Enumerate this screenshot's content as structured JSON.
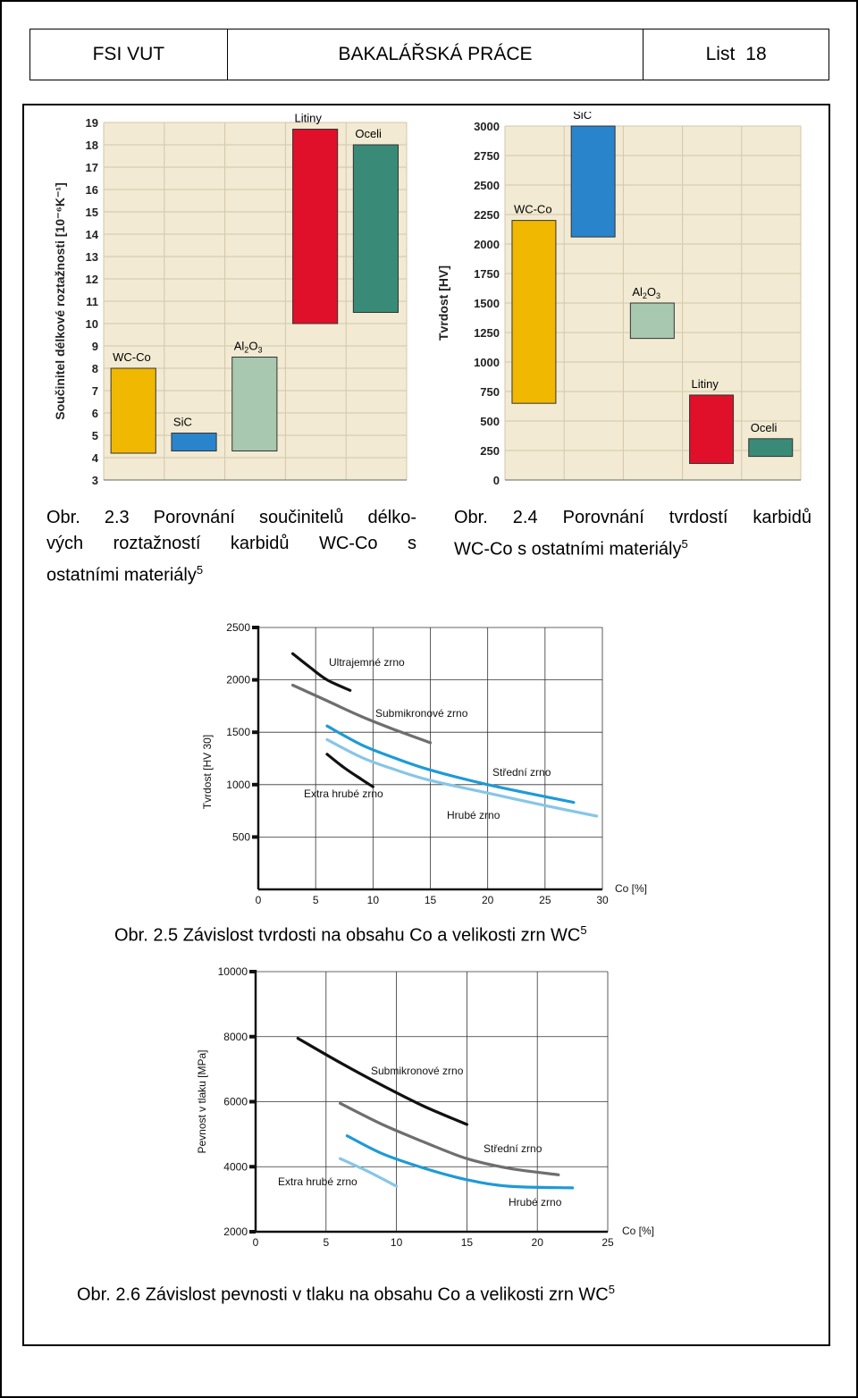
{
  "header": {
    "left": "FSI VUT",
    "center": "BAKALÁŘSKÁ PRÁCE",
    "list_label": "List",
    "list_num": "18"
  },
  "captions": {
    "fig23_line1": "Obr. 2.3 Porovnání součinitelů délko-",
    "fig23_line2": "vých roztažností karbidů WC-Co s",
    "fig23_line3": "ostatními materiály",
    "fig24_line1": "Obr. 2.4 Porovnání tvrdostí karbidů",
    "fig24_line2": "WC-Co s ostatními materiály",
    "fig25": "Obr. 2.5 Závislost tvrdosti na obsahu Co a velikosti zrn WC",
    "fig26": "Obr. 2.6 Závislost pevnosti v tlaku na obsahu Co a velikosti zrn WC",
    "ref": "5"
  },
  "chart_data": [
    {
      "type": "bar",
      "ylabel": "Součinitel délkové roztažnosti [10⁻⁶K⁻¹]",
      "ylim": [
        3,
        19
      ],
      "yticks": [
        "3",
        "4",
        "5",
        "6",
        "7",
        "8",
        "9",
        "10",
        "11",
        "12",
        "13",
        "14",
        "15",
        "16",
        "17",
        "18",
        "19"
      ],
      "categories": [
        "WC-Co",
        "SiC",
        "Al2O3",
        "Litiny",
        "Oceli"
      ],
      "ranges": [
        [
          4.2,
          8.0
        ],
        [
          4.3,
          5.1
        ],
        [
          4.3,
          8.5
        ],
        [
          10.0,
          18.7
        ],
        [
          10.5,
          18.0
        ]
      ],
      "colors": [
        "#f0b800",
        "#2a84cc",
        "#a8c8b0",
        "#e0102a",
        "#3a8a78"
      ]
    },
    {
      "type": "bar",
      "ylabel": "Tvrdost [HV]",
      "ylim": [
        0,
        3000
      ],
      "yticks": [
        "0",
        "250",
        "500",
        "750",
        "1000",
        "1250",
        "1500",
        "1750",
        "2000",
        "2250",
        "2500",
        "2750",
        "3000"
      ],
      "categories": [
        "WC-Co",
        "SiC",
        "Al2O3",
        "Litiny",
        "Oceli"
      ],
      "ranges": [
        [
          650,
          2200
        ],
        [
          2060,
          3000
        ],
        [
          1200,
          1500
        ],
        [
          140,
          720
        ],
        [
          200,
          350
        ]
      ],
      "colors": [
        "#f0b800",
        "#2a84cc",
        "#a8c8b0",
        "#e0102a",
        "#3a8a78"
      ]
    },
    {
      "type": "line",
      "ylabel": "Tvrdost [HV 30]",
      "xlabel": "Co [%]",
      "xlim": [
        0,
        30
      ],
      "ylim": [
        0,
        2500
      ],
      "xticks": [
        "0",
        "5",
        "10",
        "15",
        "20",
        "25",
        "30"
      ],
      "yticks": [
        "500",
        "1000",
        "1500",
        "2000",
        "2500"
      ],
      "series": [
        {
          "name": "Ultrajemné zrno",
          "color": "#111111",
          "x": [
            3,
            4.5,
            6,
            8
          ],
          "y": [
            2250,
            2120,
            2000,
            1900
          ]
        },
        {
          "name": "Submikronové zrno",
          "color": "#6e6e6e",
          "x": [
            3,
            6,
            9,
            12,
            15
          ],
          "y": [
            1950,
            1800,
            1650,
            1520,
            1400
          ]
        },
        {
          "name": "Střední zrno",
          "color": "#1e9ad6",
          "x": [
            6,
            9,
            12,
            15,
            20,
            27.5
          ],
          "y": [
            1560,
            1380,
            1250,
            1140,
            1000,
            830
          ]
        },
        {
          "name": "Hrubé zrno",
          "color": "#86c6e8",
          "x": [
            6,
            9,
            12,
            15,
            20,
            25,
            29.5
          ],
          "y": [
            1430,
            1260,
            1140,
            1040,
            920,
            800,
            700
          ]
        },
        {
          "name": "Extra hrubé zrno",
          "color": "#111111",
          "x": [
            6,
            7.5,
            9,
            10
          ],
          "y": [
            1290,
            1160,
            1050,
            980
          ]
        }
      ]
    },
    {
      "type": "line",
      "ylabel": "Pevnost v tlaku [MPa]",
      "xlabel": "Co [%]",
      "xlim": [
        0,
        25
      ],
      "ylim": [
        2000,
        10000
      ],
      "xticks": [
        "0",
        "5",
        "10",
        "15",
        "20",
        "25"
      ],
      "yticks": [
        "2000",
        "4000",
        "6000",
        "8000",
        "10000"
      ],
      "series": [
        {
          "name": "Submikronové zrno",
          "color": "#111111",
          "x": [
            3,
            6,
            9,
            12,
            15
          ],
          "y": [
            7950,
            7200,
            6500,
            5850,
            5300
          ]
        },
        {
          "name": "Střední zrno",
          "color": "#6e6e6e",
          "x": [
            6,
            9,
            12,
            15,
            18,
            21.5
          ],
          "y": [
            5950,
            5300,
            4750,
            4250,
            3950,
            3750
          ]
        },
        {
          "name": "Hrubé zrno",
          "color": "#1e9ad6",
          "x": [
            6.5,
            9,
            12,
            15,
            18,
            22.5
          ],
          "y": [
            4950,
            4400,
            3950,
            3600,
            3400,
            3350
          ]
        },
        {
          "name": "Extra hrubé zrno",
          "color": "#86c6e8",
          "x": [
            6,
            8,
            10
          ],
          "y": [
            4250,
            3850,
            3400
          ]
        }
      ]
    }
  ]
}
